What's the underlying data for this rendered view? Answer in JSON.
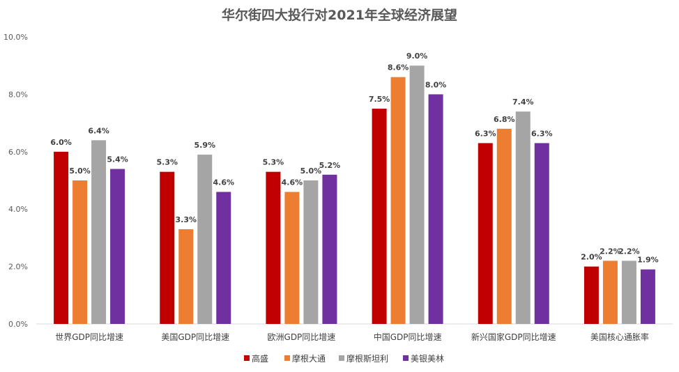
{
  "chart_data": {
    "type": "bar",
    "title": "华尔街四大投行对2021年全球经济展望",
    "xlabel": "",
    "ylabel": "",
    "ylim": [
      0,
      10
    ],
    "yticks": [
      "0.0%",
      "2.0%",
      "4.0%",
      "6.0%",
      "8.0%",
      "10.0%"
    ],
    "grid": false,
    "legend_position": "bottom",
    "categories": [
      "世界GDP同比增速",
      "美国GDP同比增速",
      "欧洲GDP同比增速",
      "中国GDP同比增速",
      "新兴国家GDP同比增速",
      "美国核心通胀率"
    ],
    "series": [
      {
        "name": "高盛",
        "color": "#C00000",
        "values": [
          6.0,
          5.3,
          5.3,
          7.5,
          6.3,
          2.0
        ]
      },
      {
        "name": "摩根大通",
        "color": "#ED7D31",
        "values": [
          5.0,
          3.3,
          4.6,
          8.6,
          6.8,
          2.2
        ]
      },
      {
        "name": "摩根斯坦利",
        "color": "#A5A5A5",
        "values": [
          6.4,
          5.9,
          5.0,
          9.0,
          7.4,
          2.2
        ]
      },
      {
        "name": "美银美林",
        "color": "#7030A0",
        "values": [
          5.4,
          4.6,
          5.2,
          8.0,
          6.3,
          1.9
        ]
      }
    ]
  }
}
